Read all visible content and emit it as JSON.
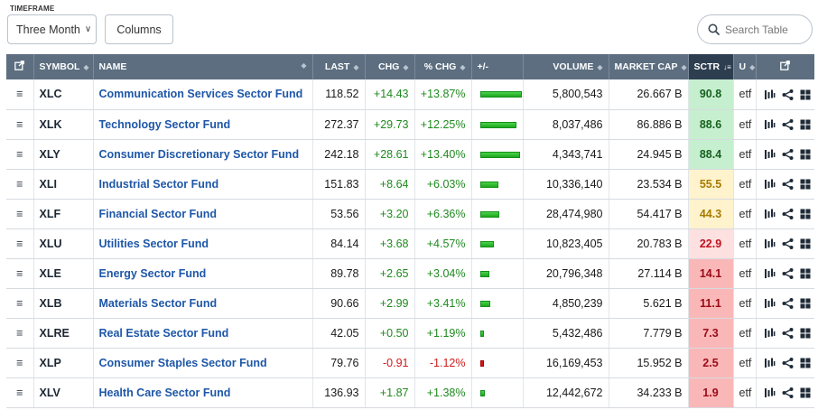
{
  "toolbar": {
    "timeframe_label": "TIMEFRAME",
    "timeframe_value": "Three Month",
    "columns_label": "Columns",
    "search_placeholder": "Search Table"
  },
  "headers": {
    "symbol": "SYMBOL",
    "name": "NAME",
    "last": "LAST",
    "chg": "CHG",
    "pct_chg": "% CHG",
    "plus_minus": "+/-",
    "volume": "VOLUME",
    "market_cap": "MARKET CAP",
    "sctr": "SCTR",
    "u": "U"
  },
  "rows": [
    {
      "symbol": "XLC",
      "name": "Communication Services Sector Fund",
      "last": "118.52",
      "chg": "+14.43",
      "pct_chg": "+13.87%",
      "pct_value": 13.87,
      "volume": "5,800,543",
      "market_cap": "26.667 B",
      "sctr": "90.8",
      "sctr_level": "hi",
      "u": "etf"
    },
    {
      "symbol": "XLK",
      "name": "Technology Sector Fund",
      "last": "272.37",
      "chg": "+29.73",
      "pct_chg": "+12.25%",
      "pct_value": 12.25,
      "volume": "8,037,486",
      "market_cap": "86.886 B",
      "sctr": "88.6",
      "sctr_level": "hi",
      "u": "etf"
    },
    {
      "symbol": "XLY",
      "name": "Consumer Discretionary Sector Fund",
      "last": "242.18",
      "chg": "+28.61",
      "pct_chg": "+13.40%",
      "pct_value": 13.4,
      "volume": "4,343,741",
      "market_cap": "24.945 B",
      "sctr": "88.4",
      "sctr_level": "hi",
      "u": "etf"
    },
    {
      "symbol": "XLI",
      "name": "Industrial Sector Fund",
      "last": "151.83",
      "chg": "+8.64",
      "pct_chg": "+6.03%",
      "pct_value": 6.03,
      "volume": "10,336,140",
      "market_cap": "23.534 B",
      "sctr": "55.5",
      "sctr_level": "mid",
      "u": "etf"
    },
    {
      "symbol": "XLF",
      "name": "Financial Sector Fund",
      "last": "53.56",
      "chg": "+3.20",
      "pct_chg": "+6.36%",
      "pct_value": 6.36,
      "volume": "28,474,980",
      "market_cap": "54.417 B",
      "sctr": "44.3",
      "sctr_level": "mid",
      "u": "etf"
    },
    {
      "symbol": "XLU",
      "name": "Utilities Sector Fund",
      "last": "84.14",
      "chg": "+3.68",
      "pct_chg": "+4.57%",
      "pct_value": 4.57,
      "volume": "10,823,405",
      "market_cap": "20.783 B",
      "sctr": "22.9",
      "sctr_level": "lo1",
      "u": "etf"
    },
    {
      "symbol": "XLE",
      "name": "Energy Sector Fund",
      "last": "89.78",
      "chg": "+2.65",
      "pct_chg": "+3.04%",
      "pct_value": 3.04,
      "volume": "20,796,348",
      "market_cap": "27.114 B",
      "sctr": "14.1",
      "sctr_level": "lo2",
      "u": "etf"
    },
    {
      "symbol": "XLB",
      "name": "Materials Sector Fund",
      "last": "90.66",
      "chg": "+2.99",
      "pct_chg": "+3.41%",
      "pct_value": 3.41,
      "volume": "4,850,239",
      "market_cap": "5.621 B",
      "sctr": "11.1",
      "sctr_level": "lo2",
      "u": "etf"
    },
    {
      "symbol": "XLRE",
      "name": "Real Estate Sector Fund",
      "last": "42.05",
      "chg": "+0.50",
      "pct_chg": "+1.19%",
      "pct_value": 1.19,
      "volume": "5,432,486",
      "market_cap": "7.779 B",
      "sctr": "7.3",
      "sctr_level": "lo2",
      "u": "etf"
    },
    {
      "symbol": "XLP",
      "name": "Consumer Staples Sector Fund",
      "last": "79.76",
      "chg": "-0.91",
      "pct_chg": "-1.12%",
      "pct_value": -1.12,
      "volume": "16,169,453",
      "market_cap": "15.952 B",
      "sctr": "2.5",
      "sctr_level": "lo2",
      "u": "etf"
    },
    {
      "symbol": "XLV",
      "name": "Health Care Sector Fund",
      "last": "136.93",
      "chg": "+1.87",
      "pct_chg": "+1.38%",
      "pct_value": 1.38,
      "volume": "12,442,672",
      "market_cap": "34.233 B",
      "sctr": "1.9",
      "sctr_level": "lo2",
      "u": "etf"
    }
  ],
  "icons": {
    "header_left": "external-link-icon",
    "header_right": "external-link-icon",
    "row_menu": "hamburger-menu-icon",
    "row_tools": [
      "chart-icon",
      "share-icon",
      "grid-icon"
    ]
  },
  "colors": {
    "header_bg": "#5c6e80",
    "sctr_header_bg": "#2d3e50",
    "positive": "#1f8a1f",
    "negative": "#d11a1a",
    "link": "#1e57a8"
  }
}
